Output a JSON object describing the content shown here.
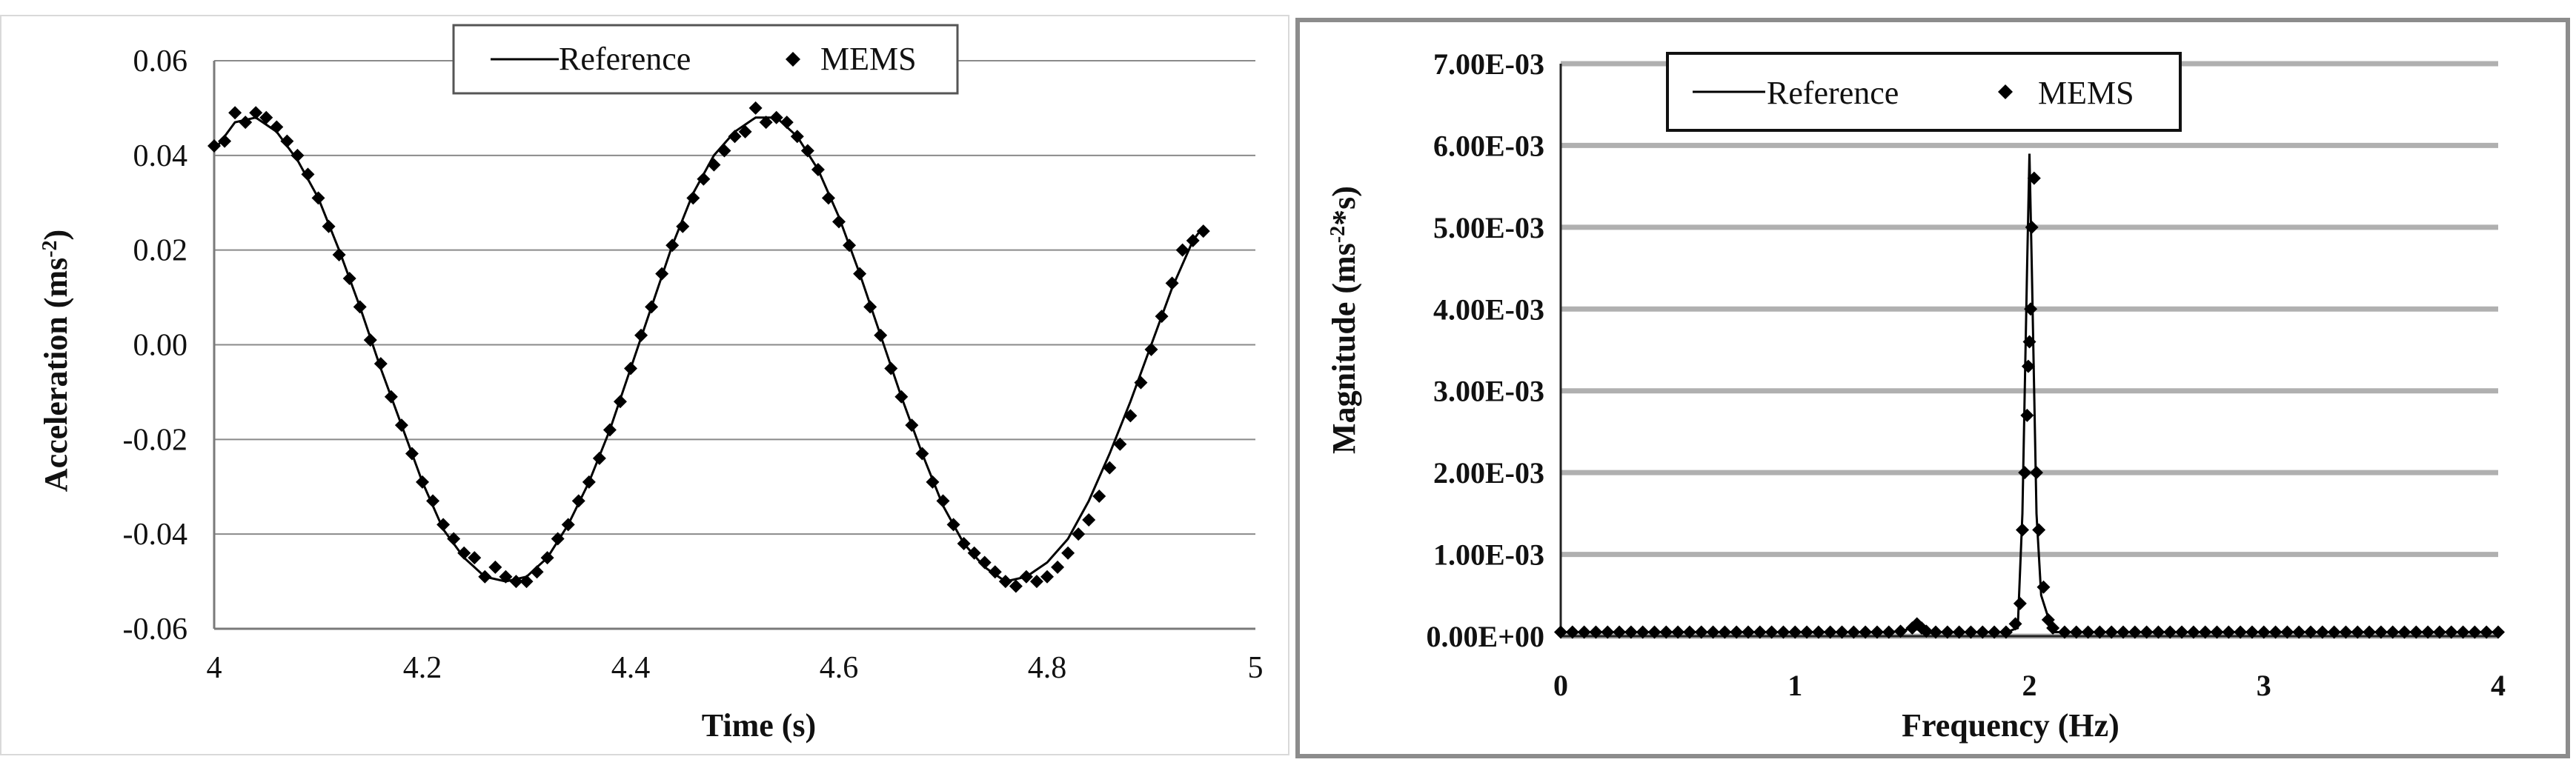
{
  "charts": [
    {
      "id": "time-domain",
      "type": "line",
      "ylabel": "Acceleration  (ms",
      "ylabel_sup": "-2",
      "ylabel_end": ")",
      "xlabel": "Time (s)",
      "xlim": [
        4,
        5
      ],
      "ylim": [
        -0.06,
        0.06
      ],
      "xticks": [
        4,
        4.2,
        4.4,
        4.6,
        4.8,
        5
      ],
      "xtick_labels": [
        "4",
        "4.2",
        "4.4",
        "4.6",
        "4.8",
        "5"
      ],
      "yticks": [
        -0.06,
        -0.04,
        -0.02,
        0,
        0.02,
        0.04,
        0.06
      ],
      "ytick_labels": [
        "-0.06",
        "-0.04",
        "-0.02",
        "0.00",
        "0.02",
        "0.04",
        "0.06"
      ],
      "grid": true,
      "legend_position": "top-center",
      "legend": [
        "Reference",
        "MEMS"
      ]
    },
    {
      "id": "frequency-domain",
      "type": "line",
      "ylabel": "Magnitude (ms",
      "ylabel_sup": "-2",
      "ylabel_end": "*s)",
      "xlabel": "Frequency (Hz)",
      "xlim": [
        0,
        4
      ],
      "ylim": [
        0,
        0.007
      ],
      "xticks": [
        0,
        1,
        2,
        3,
        4
      ],
      "xtick_labels": [
        "0",
        "1",
        "2",
        "3",
        "4"
      ],
      "yticks": [
        0,
        0.001,
        0.002,
        0.003,
        0.004,
        0.005,
        0.006,
        0.007
      ],
      "ytick_labels": [
        "0.00E+00",
        "1.00E-03",
        "2.00E-03",
        "3.00E-03",
        "4.00E-03",
        "5.00E-03",
        "6.00E-03",
        "7.00E-03"
      ],
      "grid": true,
      "legend_position": "top-left",
      "legend": [
        "Reference",
        "MEMS"
      ]
    }
  ],
  "chart_data": [
    {
      "type": "line",
      "xlabel": "Time (s)",
      "ylabel": "Acceleration  (ms-2)",
      "xlim": [
        4,
        5
      ],
      "ylim": [
        -0.06,
        0.06
      ],
      "series": [
        {
          "name": "Reference",
          "style": "line",
          "x": [
            4.0,
            4.02,
            4.04,
            4.06,
            4.08,
            4.1,
            4.12,
            4.14,
            4.16,
            4.18,
            4.2,
            4.22,
            4.24,
            4.26,
            4.28,
            4.3,
            4.32,
            4.34,
            4.36,
            4.38,
            4.4,
            4.42,
            4.44,
            4.46,
            4.48,
            4.5,
            4.52,
            4.54,
            4.56,
            4.58,
            4.6,
            4.62,
            4.64,
            4.66,
            4.68,
            4.7,
            4.72,
            4.74,
            4.76,
            4.78,
            4.8,
            4.82,
            4.84,
            4.86,
            4.88,
            4.9,
            4.92,
            4.94,
            4.95
          ],
          "y": [
            0.041,
            0.047,
            0.048,
            0.045,
            0.039,
            0.031,
            0.02,
            0.008,
            -0.005,
            -0.017,
            -0.029,
            -0.039,
            -0.045,
            -0.049,
            -0.05,
            -0.049,
            -0.045,
            -0.038,
            -0.029,
            -0.018,
            -0.005,
            0.008,
            0.021,
            0.032,
            0.04,
            0.045,
            0.048,
            0.048,
            0.044,
            0.037,
            0.027,
            0.015,
            0.002,
            -0.011,
            -0.023,
            -0.034,
            -0.042,
            -0.047,
            -0.05,
            -0.049,
            -0.046,
            -0.041,
            -0.033,
            -0.023,
            -0.012,
            0.0,
            0.012,
            0.022,
            0.025
          ]
        },
        {
          "name": "MEMS",
          "style": "markers",
          "x": [
            4.0,
            4.01,
            4.02,
            4.03,
            4.04,
            4.05,
            4.06,
            4.07,
            4.08,
            4.09,
            4.1,
            4.11,
            4.12,
            4.13,
            4.14,
            4.15,
            4.16,
            4.17,
            4.18,
            4.19,
            4.2,
            4.21,
            4.22,
            4.23,
            4.24,
            4.25,
            4.26,
            4.27,
            4.28,
            4.29,
            4.3,
            4.31,
            4.32,
            4.33,
            4.34,
            4.35,
            4.36,
            4.37,
            4.38,
            4.39,
            4.4,
            4.41,
            4.42,
            4.43,
            4.44,
            4.45,
            4.46,
            4.47,
            4.48,
            4.49,
            4.5,
            4.51,
            4.52,
            4.53,
            4.54,
            4.55,
            4.56,
            4.57,
            4.58,
            4.59,
            4.6,
            4.61,
            4.62,
            4.63,
            4.64,
            4.65,
            4.66,
            4.67,
            4.68,
            4.69,
            4.7,
            4.71,
            4.72,
            4.73,
            4.74,
            4.75,
            4.76,
            4.77,
            4.78,
            4.79,
            4.8,
            4.81,
            4.82,
            4.83,
            4.84,
            4.85,
            4.86,
            4.87,
            4.88,
            4.89,
            4.9,
            4.91,
            4.92,
            4.93,
            4.94,
            4.95
          ],
          "y": [
            0.042,
            0.043,
            0.049,
            0.047,
            0.049,
            0.048,
            0.046,
            0.043,
            0.04,
            0.036,
            0.031,
            0.025,
            0.019,
            0.014,
            0.008,
            0.001,
            -0.004,
            -0.011,
            -0.017,
            -0.023,
            -0.029,
            -0.033,
            -0.038,
            -0.041,
            -0.044,
            -0.045,
            -0.049,
            -0.047,
            -0.049,
            -0.05,
            -0.05,
            -0.048,
            -0.045,
            -0.041,
            -0.038,
            -0.033,
            -0.029,
            -0.024,
            -0.018,
            -0.012,
            -0.005,
            0.002,
            0.008,
            0.015,
            0.021,
            0.025,
            0.031,
            0.035,
            0.038,
            0.041,
            0.044,
            0.045,
            0.05,
            0.047,
            0.048,
            0.047,
            0.044,
            0.041,
            0.037,
            0.031,
            0.026,
            0.021,
            0.015,
            0.008,
            0.002,
            -0.005,
            -0.011,
            -0.017,
            -0.023,
            -0.029,
            -0.033,
            -0.038,
            -0.042,
            -0.044,
            -0.046,
            -0.048,
            -0.05,
            -0.051,
            -0.049,
            -0.05,
            -0.049,
            -0.047,
            -0.044,
            -0.04,
            -0.037,
            -0.032,
            -0.026,
            -0.021,
            -0.015,
            -0.008,
            -0.001,
            0.006,
            0.013,
            0.02,
            0.022,
            0.024
          ]
        }
      ]
    },
    {
      "type": "line",
      "xlabel": "Frequency (Hz)",
      "ylabel": "Magnitude (ms-2*s)",
      "xlim": [
        0,
        4
      ],
      "ylim": [
        0,
        0.007
      ],
      "series": [
        {
          "name": "Reference",
          "style": "line",
          "x": [
            0,
            1.4,
            1.45,
            1.5,
            1.55,
            1.6,
            1.9,
            1.95,
            1.97,
            1.99,
            2.0,
            2.01,
            2.03,
            2.05,
            2.1,
            4
          ],
          "y": [
            5e-05,
            5e-05,
            6e-05,
            0.0001,
            6e-05,
            5e-05,
            5e-05,
            0.0001,
            0.0015,
            0.0045,
            0.0059,
            0.0045,
            0.0015,
            0.0005,
            5e-05,
            5e-05
          ]
        },
        {
          "name": "MEMS",
          "style": "markers",
          "x": [
            0,
            0.05,
            0.1,
            0.15,
            0.2,
            0.25,
            0.3,
            0.35,
            0.4,
            0.45,
            0.5,
            0.55,
            0.6,
            0.65,
            0.7,
            0.75,
            0.8,
            0.85,
            0.9,
            0.95,
            1.0,
            1.05,
            1.1,
            1.15,
            1.2,
            1.25,
            1.3,
            1.35,
            1.4,
            1.45,
            1.5,
            1.52,
            1.54,
            1.56,
            1.6,
            1.65,
            1.7,
            1.75,
            1.8,
            1.85,
            1.9,
            1.94,
            1.96,
            1.97,
            1.98,
            1.99,
            1.995,
            2.0,
            2.005,
            2.01,
            2.02,
            2.03,
            2.04,
            2.06,
            2.08,
            2.1,
            2.15,
            2.2,
            2.25,
            2.3,
            2.35,
            2.4,
            2.45,
            2.5,
            2.55,
            2.6,
            2.65,
            2.7,
            2.75,
            2.8,
            2.85,
            2.9,
            2.95,
            3.0,
            3.05,
            3.1,
            3.15,
            3.2,
            3.25,
            3.3,
            3.35,
            3.4,
            3.45,
            3.5,
            3.55,
            3.6,
            3.65,
            3.7,
            3.75,
            3.8,
            3.85,
            3.9,
            3.95,
            4.0
          ],
          "y": [
            5e-05,
            5e-05,
            5e-05,
            5e-05,
            5e-05,
            5e-05,
            5e-05,
            5e-05,
            5e-05,
            5e-05,
            5e-05,
            5e-05,
            5e-05,
            5e-05,
            5e-05,
            5e-05,
            5e-05,
            5e-05,
            5e-05,
            5e-05,
            5e-05,
            5e-05,
            5e-05,
            5e-05,
            5e-05,
            5e-05,
            5e-05,
            5e-05,
            5e-05,
            6e-05,
            0.0001,
            0.00015,
            0.0001,
            6e-05,
            5e-05,
            5e-05,
            5e-05,
            5e-05,
            5e-05,
            5e-05,
            5e-05,
            0.00015,
            0.0004,
            0.0013,
            0.002,
            0.0027,
            0.0033,
            0.0036,
            0.004,
            0.005,
            0.0056,
            0.002,
            0.0013,
            0.0006,
            0.0002,
            0.0001,
            5e-05,
            5e-05,
            5e-05,
            5e-05,
            5e-05,
            5e-05,
            5e-05,
            5e-05,
            5e-05,
            5e-05,
            5e-05,
            5e-05,
            5e-05,
            5e-05,
            5e-05,
            5e-05,
            5e-05,
            5e-05,
            5e-05,
            5e-05,
            5e-05,
            5e-05,
            5e-05,
            5e-05,
            5e-05,
            5e-05,
            5e-05,
            5e-05,
            5e-05,
            5e-05,
            5e-05,
            5e-05,
            5e-05,
            5e-05,
            5e-05,
            5e-05,
            5e-05,
            5e-05
          ]
        }
      ]
    }
  ]
}
